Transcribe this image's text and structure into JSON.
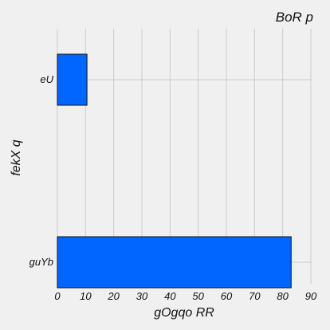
{
  "chart_data": {
    "type": "bar",
    "orientation": "horizontal",
    "title": "BoR p",
    "xlabel": "gOgqo RR",
    "ylabel": "fekX q",
    "categories": [
      "eU",
      "guYb"
    ],
    "values": [
      10.5,
      83
    ],
    "xlim": [
      0,
      90
    ],
    "xticks": [
      0,
      10,
      20,
      30,
      40,
      50,
      60,
      70,
      80,
      90
    ],
    "grid": true,
    "bar_color": "#0066ff"
  }
}
